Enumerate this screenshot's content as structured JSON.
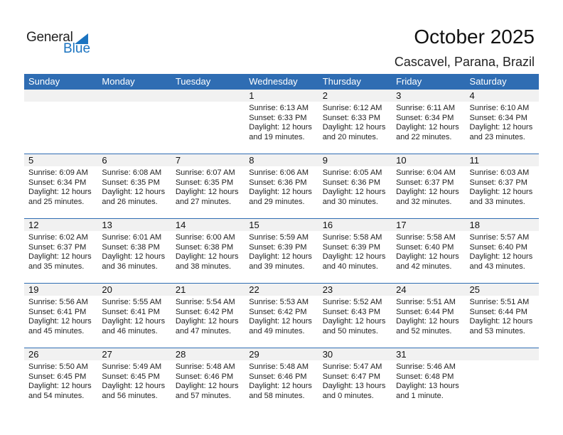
{
  "logo": {
    "text1": "General",
    "text2": "Blue"
  },
  "title": "October 2025",
  "location": "Cascavel, Parana, Brazil",
  "colors": {
    "header": "#2f6db3",
    "date_bar": "#f1f1f1",
    "brand_blue": "#1a73c0"
  },
  "weekdays": [
    "Sunday",
    "Monday",
    "Tuesday",
    "Wednesday",
    "Thursday",
    "Friday",
    "Saturday"
  ],
  "weeks": [
    [
      null,
      null,
      null,
      {
        "day": "1",
        "sunrise": "Sunrise: 6:13 AM",
        "sunset": "Sunset: 6:33 PM",
        "daylight1": "Daylight: 12 hours",
        "daylight2": "and 19 minutes."
      },
      {
        "day": "2",
        "sunrise": "Sunrise: 6:12 AM",
        "sunset": "Sunset: 6:33 PM",
        "daylight1": "Daylight: 12 hours",
        "daylight2": "and 20 minutes."
      },
      {
        "day": "3",
        "sunrise": "Sunrise: 6:11 AM",
        "sunset": "Sunset: 6:34 PM",
        "daylight1": "Daylight: 12 hours",
        "daylight2": "and 22 minutes."
      },
      {
        "day": "4",
        "sunrise": "Sunrise: 6:10 AM",
        "sunset": "Sunset: 6:34 PM",
        "daylight1": "Daylight: 12 hours",
        "daylight2": "and 23 minutes."
      }
    ],
    [
      {
        "day": "5",
        "sunrise": "Sunrise: 6:09 AM",
        "sunset": "Sunset: 6:34 PM",
        "daylight1": "Daylight: 12 hours",
        "daylight2": "and 25 minutes."
      },
      {
        "day": "6",
        "sunrise": "Sunrise: 6:08 AM",
        "sunset": "Sunset: 6:35 PM",
        "daylight1": "Daylight: 12 hours",
        "daylight2": "and 26 minutes."
      },
      {
        "day": "7",
        "sunrise": "Sunrise: 6:07 AM",
        "sunset": "Sunset: 6:35 PM",
        "daylight1": "Daylight: 12 hours",
        "daylight2": "and 27 minutes."
      },
      {
        "day": "8",
        "sunrise": "Sunrise: 6:06 AM",
        "sunset": "Sunset: 6:36 PM",
        "daylight1": "Daylight: 12 hours",
        "daylight2": "and 29 minutes."
      },
      {
        "day": "9",
        "sunrise": "Sunrise: 6:05 AM",
        "sunset": "Sunset: 6:36 PM",
        "daylight1": "Daylight: 12 hours",
        "daylight2": "and 30 minutes."
      },
      {
        "day": "10",
        "sunrise": "Sunrise: 6:04 AM",
        "sunset": "Sunset: 6:37 PM",
        "daylight1": "Daylight: 12 hours",
        "daylight2": "and 32 minutes."
      },
      {
        "day": "11",
        "sunrise": "Sunrise: 6:03 AM",
        "sunset": "Sunset: 6:37 PM",
        "daylight1": "Daylight: 12 hours",
        "daylight2": "and 33 minutes."
      }
    ],
    [
      {
        "day": "12",
        "sunrise": "Sunrise: 6:02 AM",
        "sunset": "Sunset: 6:37 PM",
        "daylight1": "Daylight: 12 hours",
        "daylight2": "and 35 minutes."
      },
      {
        "day": "13",
        "sunrise": "Sunrise: 6:01 AM",
        "sunset": "Sunset: 6:38 PM",
        "daylight1": "Daylight: 12 hours",
        "daylight2": "and 36 minutes."
      },
      {
        "day": "14",
        "sunrise": "Sunrise: 6:00 AM",
        "sunset": "Sunset: 6:38 PM",
        "daylight1": "Daylight: 12 hours",
        "daylight2": "and 38 minutes."
      },
      {
        "day": "15",
        "sunrise": "Sunrise: 5:59 AM",
        "sunset": "Sunset: 6:39 PM",
        "daylight1": "Daylight: 12 hours",
        "daylight2": "and 39 minutes."
      },
      {
        "day": "16",
        "sunrise": "Sunrise: 5:58 AM",
        "sunset": "Sunset: 6:39 PM",
        "daylight1": "Daylight: 12 hours",
        "daylight2": "and 40 minutes."
      },
      {
        "day": "17",
        "sunrise": "Sunrise: 5:58 AM",
        "sunset": "Sunset: 6:40 PM",
        "daylight1": "Daylight: 12 hours",
        "daylight2": "and 42 minutes."
      },
      {
        "day": "18",
        "sunrise": "Sunrise: 5:57 AM",
        "sunset": "Sunset: 6:40 PM",
        "daylight1": "Daylight: 12 hours",
        "daylight2": "and 43 minutes."
      }
    ],
    [
      {
        "day": "19",
        "sunrise": "Sunrise: 5:56 AM",
        "sunset": "Sunset: 6:41 PM",
        "daylight1": "Daylight: 12 hours",
        "daylight2": "and 45 minutes."
      },
      {
        "day": "20",
        "sunrise": "Sunrise: 5:55 AM",
        "sunset": "Sunset: 6:41 PM",
        "daylight1": "Daylight: 12 hours",
        "daylight2": "and 46 minutes."
      },
      {
        "day": "21",
        "sunrise": "Sunrise: 5:54 AM",
        "sunset": "Sunset: 6:42 PM",
        "daylight1": "Daylight: 12 hours",
        "daylight2": "and 47 minutes."
      },
      {
        "day": "22",
        "sunrise": "Sunrise: 5:53 AM",
        "sunset": "Sunset: 6:42 PM",
        "daylight1": "Daylight: 12 hours",
        "daylight2": "and 49 minutes."
      },
      {
        "day": "23",
        "sunrise": "Sunrise: 5:52 AM",
        "sunset": "Sunset: 6:43 PM",
        "daylight1": "Daylight: 12 hours",
        "daylight2": "and 50 minutes."
      },
      {
        "day": "24",
        "sunrise": "Sunrise: 5:51 AM",
        "sunset": "Sunset: 6:44 PM",
        "daylight1": "Daylight: 12 hours",
        "daylight2": "and 52 minutes."
      },
      {
        "day": "25",
        "sunrise": "Sunrise: 5:51 AM",
        "sunset": "Sunset: 6:44 PM",
        "daylight1": "Daylight: 12 hours",
        "daylight2": "and 53 minutes."
      }
    ],
    [
      {
        "day": "26",
        "sunrise": "Sunrise: 5:50 AM",
        "sunset": "Sunset: 6:45 PM",
        "daylight1": "Daylight: 12 hours",
        "daylight2": "and 54 minutes."
      },
      {
        "day": "27",
        "sunrise": "Sunrise: 5:49 AM",
        "sunset": "Sunset: 6:45 PM",
        "daylight1": "Daylight: 12 hours",
        "daylight2": "and 56 minutes."
      },
      {
        "day": "28",
        "sunrise": "Sunrise: 5:48 AM",
        "sunset": "Sunset: 6:46 PM",
        "daylight1": "Daylight: 12 hours",
        "daylight2": "and 57 minutes."
      },
      {
        "day": "29",
        "sunrise": "Sunrise: 5:48 AM",
        "sunset": "Sunset: 6:46 PM",
        "daylight1": "Daylight: 12 hours",
        "daylight2": "and 58 minutes."
      },
      {
        "day": "30",
        "sunrise": "Sunrise: 5:47 AM",
        "sunset": "Sunset: 6:47 PM",
        "daylight1": "Daylight: 13 hours",
        "daylight2": "and 0 minutes."
      },
      {
        "day": "31",
        "sunrise": "Sunrise: 5:46 AM",
        "sunset": "Sunset: 6:48 PM",
        "daylight1": "Daylight: 13 hours",
        "daylight2": "and 1 minute."
      },
      null
    ]
  ]
}
